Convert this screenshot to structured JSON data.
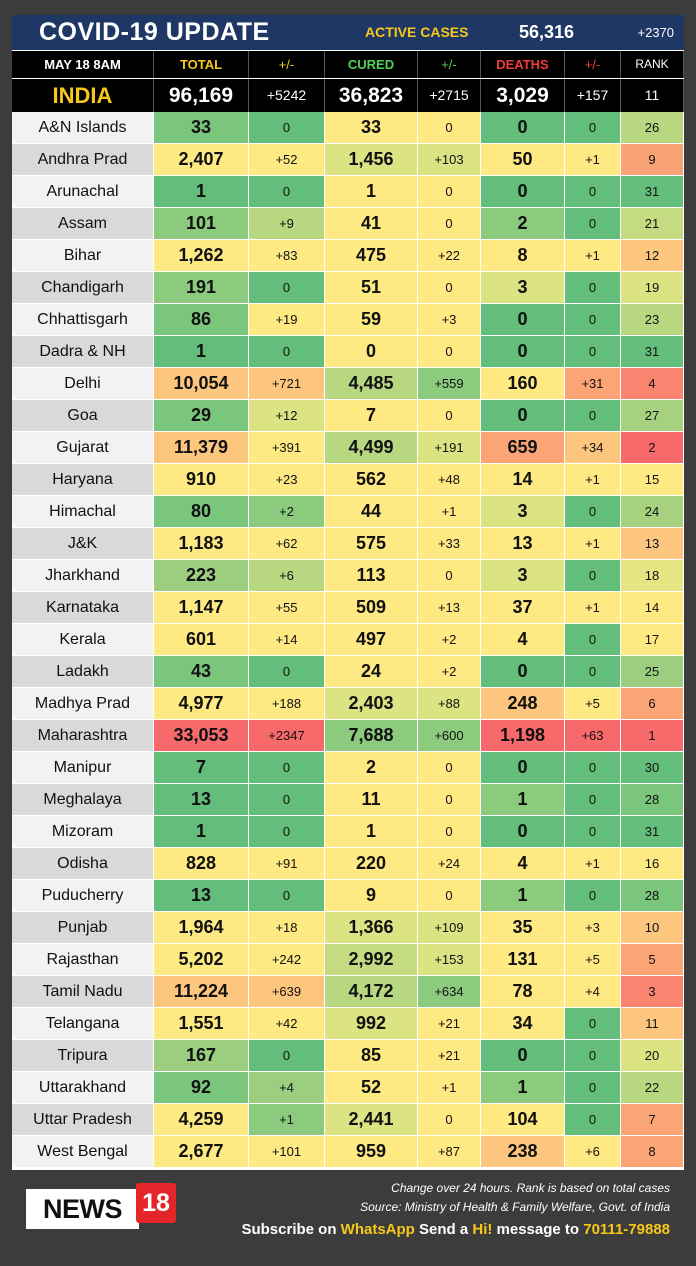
{
  "header": {
    "title": "COVID-19 UPDATE",
    "active_label": "ACTIVE CASES",
    "active_value": "56,316",
    "active_change": "+2370"
  },
  "columns": {
    "date": "MAY 18  8AM",
    "total": "TOTAL",
    "total_change": "+/-",
    "cured": "CURED",
    "cured_change": "+/-",
    "deaths": "DEATHS",
    "deaths_change": "+/-",
    "rank": "RANK"
  },
  "india": {
    "name": "INDIA",
    "total": "96,169",
    "total_change": "+5242",
    "cured": "36,823",
    "cured_change": "+2715",
    "deaths": "3,029",
    "deaths_change": "+157",
    "rank": "11"
  },
  "colors": {
    "green_dark": "#63be7b",
    "green": "#8cca7e",
    "green_light": "#b7d880",
    "yellow_green": "#dbe383",
    "yellow": "#fee983",
    "orange_light": "#fdc67e",
    "orange": "#fba576",
    "red_light": "#f98570",
    "red": "#f8696b"
  },
  "states": [
    {
      "name": "A&N Islands",
      "total": "33",
      "total_change": "0",
      "cured": "33",
      "cured_change": "0",
      "deaths": "0",
      "deaths_change": "0",
      "rank": "26",
      "bg": [
        "#7bc67d",
        "#63be7b",
        "#fee983",
        "#fee983",
        "#63be7b",
        "#63be7b",
        "#b7d880"
      ]
    },
    {
      "name": "Andhra Prad",
      "total": "2,407",
      "total_change": "+52",
      "cured": "1,456",
      "cured_change": "+103",
      "deaths": "50",
      "deaths_change": "+1",
      "rank": "9",
      "bg": [
        "#fee983",
        "#fee983",
        "#dbe383",
        "#dbe383",
        "#fee983",
        "#fee983",
        "#f9a275"
      ]
    },
    {
      "name": "Arunachal",
      "total": "1",
      "total_change": "0",
      "cured": "1",
      "cured_change": "0",
      "deaths": "0",
      "deaths_change": "0",
      "rank": "31",
      "bg": [
        "#63be7b",
        "#63be7b",
        "#fee983",
        "#fee983",
        "#63be7b",
        "#63be7b",
        "#63be7b"
      ]
    },
    {
      "name": "Assam",
      "total": "101",
      "total_change": "+9",
      "cured": "41",
      "cured_change": "0",
      "deaths": "2",
      "deaths_change": "0",
      "rank": "21",
      "bg": [
        "#8cca7e",
        "#b7d880",
        "#fee983",
        "#fee983",
        "#8cca7e",
        "#63be7b",
        "#c5db82"
      ]
    },
    {
      "name": "Bihar",
      "total": "1,262",
      "total_change": "+83",
      "cured": "475",
      "cured_change": "+22",
      "deaths": "8",
      "deaths_change": "+1",
      "rank": "12",
      "bg": [
        "#fee983",
        "#fee983",
        "#fee983",
        "#fee983",
        "#fee983",
        "#fee983",
        "#fdc67e"
      ]
    },
    {
      "name": "Chandigarh",
      "total": "191",
      "total_change": "0",
      "cured": "51",
      "cured_change": "0",
      "deaths": "3",
      "deaths_change": "0",
      "rank": "19",
      "bg": [
        "#8cca7e",
        "#63be7b",
        "#fee983",
        "#fee983",
        "#dbe383",
        "#63be7b",
        "#dbe383"
      ]
    },
    {
      "name": "Chhattisgarh",
      "total": "86",
      "total_change": "+19",
      "cured": "59",
      "cured_change": "+3",
      "deaths": "0",
      "deaths_change": "0",
      "rank": "23",
      "bg": [
        "#7bc67d",
        "#fee983",
        "#fee983",
        "#fee983",
        "#63be7b",
        "#63be7b",
        "#b7d880"
      ]
    },
    {
      "name": "Dadra & NH",
      "total": "1",
      "total_change": "0",
      "cured": "0",
      "cured_change": "0",
      "deaths": "0",
      "deaths_change": "0",
      "rank": "31",
      "bg": [
        "#63be7b",
        "#63be7b",
        "#fee983",
        "#fee983",
        "#63be7b",
        "#63be7b",
        "#63be7b"
      ]
    },
    {
      "name": "Delhi",
      "total": "10,054",
      "total_change": "+721",
      "cured": "4,485",
      "cured_change": "+559",
      "deaths": "160",
      "deaths_change": "+31",
      "rank": "4",
      "bg": [
        "#fdc67e",
        "#fdc67e",
        "#b7d880",
        "#8cca7e",
        "#fee983",
        "#fba576",
        "#f98570"
      ]
    },
    {
      "name": "Goa",
      "total": "29",
      "total_change": "+12",
      "cured": "7",
      "cured_change": "0",
      "deaths": "0",
      "deaths_change": "0",
      "rank": "27",
      "bg": [
        "#7bc67d",
        "#dbe383",
        "#fee983",
        "#fee983",
        "#63be7b",
        "#63be7b",
        "#a6d27f"
      ]
    },
    {
      "name": "Gujarat",
      "total": "11,379",
      "total_change": "+391",
      "cured": "4,499",
      "cured_change": "+191",
      "deaths": "659",
      "deaths_change": "+34",
      "rank": "2",
      "bg": [
        "#fdc67e",
        "#fee983",
        "#b7d880",
        "#dbe383",
        "#fba576",
        "#fdc67e",
        "#f8696b"
      ]
    },
    {
      "name": "Haryana",
      "total": "910",
      "total_change": "+23",
      "cured": "562",
      "cured_change": "+48",
      "deaths": "14",
      "deaths_change": "+1",
      "rank": "15",
      "bg": [
        "#fee983",
        "#fee983",
        "#fee983",
        "#fee983",
        "#fee983",
        "#fee983",
        "#fee983"
      ]
    },
    {
      "name": "Himachal",
      "total": "80",
      "total_change": "+2",
      "cured": "44",
      "cured_change": "+1",
      "deaths": "3",
      "deaths_change": "0",
      "rank": "24",
      "bg": [
        "#7bc67d",
        "#8cca7e",
        "#fee983",
        "#fee983",
        "#dbe383",
        "#63be7b",
        "#a6d27f"
      ]
    },
    {
      "name": "J&K",
      "total": "1,183",
      "total_change": "+62",
      "cured": "575",
      "cured_change": "+33",
      "deaths": "13",
      "deaths_change": "+1",
      "rank": "13",
      "bg": [
        "#fee983",
        "#fee983",
        "#fee983",
        "#fee983",
        "#fee983",
        "#fee983",
        "#fdc67e"
      ]
    },
    {
      "name": "Jharkhand",
      "total": "223",
      "total_change": "+6",
      "cured": "113",
      "cured_change": "0",
      "deaths": "3",
      "deaths_change": "0",
      "rank": "18",
      "bg": [
        "#9bcf7f",
        "#b7d880",
        "#fee983",
        "#fee983",
        "#dbe383",
        "#63be7b",
        "#e6e583"
      ]
    },
    {
      "name": "Karnataka",
      "total": "1,147",
      "total_change": "+55",
      "cured": "509",
      "cured_change": "+13",
      "deaths": "37",
      "deaths_change": "+1",
      "rank": "14",
      "bg": [
        "#fee983",
        "#fee983",
        "#fee983",
        "#fee983",
        "#fee983",
        "#fee983",
        "#fee983"
      ]
    },
    {
      "name": "Kerala",
      "total": "601",
      "total_change": "+14",
      "cured": "497",
      "cured_change": "+2",
      "deaths": "4",
      "deaths_change": "0",
      "rank": "17",
      "bg": [
        "#fee983",
        "#fee983",
        "#fee983",
        "#fee983",
        "#fee983",
        "#63be7b",
        "#fee983"
      ]
    },
    {
      "name": "Ladakh",
      "total": "43",
      "total_change": "0",
      "cured": "24",
      "cured_change": "+2",
      "deaths": "0",
      "deaths_change": "0",
      "rank": "25",
      "bg": [
        "#7bc67d",
        "#63be7b",
        "#fee983",
        "#fee983",
        "#63be7b",
        "#63be7b",
        "#9bcf7f"
      ]
    },
    {
      "name": "Madhya Prad",
      "total": "4,977",
      "total_change": "+188",
      "cured": "2,403",
      "cured_change": "+88",
      "deaths": "248",
      "deaths_change": "+5",
      "rank": "6",
      "bg": [
        "#fee983",
        "#fee983",
        "#dbe383",
        "#dbe383",
        "#fdc67e",
        "#fee983",
        "#fba576"
      ]
    },
    {
      "name": "Maharashtra",
      "total": "33,053",
      "total_change": "+2347",
      "cured": "7,688",
      "cured_change": "+600",
      "deaths": "1,198",
      "deaths_change": "+63",
      "rank": "1",
      "bg": [
        "#f8696b",
        "#f8696b",
        "#8cca7e",
        "#8cca7e",
        "#f8696b",
        "#f8696b",
        "#f8696b"
      ]
    },
    {
      "name": "Manipur",
      "total": "7",
      "total_change": "0",
      "cured": "2",
      "cured_change": "0",
      "deaths": "0",
      "deaths_change": "0",
      "rank": "30",
      "bg": [
        "#63be7b",
        "#63be7b",
        "#fee983",
        "#fee983",
        "#63be7b",
        "#63be7b",
        "#63be7b"
      ]
    },
    {
      "name": "Meghalaya",
      "total": "13",
      "total_change": "0",
      "cured": "11",
      "cured_change": "0",
      "deaths": "1",
      "deaths_change": "0",
      "rank": "28",
      "bg": [
        "#63be7b",
        "#63be7b",
        "#fee983",
        "#fee983",
        "#8cca7e",
        "#63be7b",
        "#7bc67d"
      ]
    },
    {
      "name": "Mizoram",
      "total": "1",
      "total_change": "0",
      "cured": "1",
      "cured_change": "0",
      "deaths": "0",
      "deaths_change": "0",
      "rank": "31",
      "bg": [
        "#63be7b",
        "#63be7b",
        "#fee983",
        "#fee983",
        "#63be7b",
        "#63be7b",
        "#63be7b"
      ]
    },
    {
      "name": "Odisha",
      "total": "828",
      "total_change": "+91",
      "cured": "220",
      "cured_change": "+24",
      "deaths": "4",
      "deaths_change": "+1",
      "rank": "16",
      "bg": [
        "#fee983",
        "#fee983",
        "#fee983",
        "#fee983",
        "#fee983",
        "#fee983",
        "#fee983"
      ]
    },
    {
      "name": "Puducherry",
      "total": "13",
      "total_change": "0",
      "cured": "9",
      "cured_change": "0",
      "deaths": "1",
      "deaths_change": "0",
      "rank": "28",
      "bg": [
        "#63be7b",
        "#63be7b",
        "#fee983",
        "#fee983",
        "#8cca7e",
        "#63be7b",
        "#7bc67d"
      ]
    },
    {
      "name": "Punjab",
      "total": "1,964",
      "total_change": "+18",
      "cured": "1,366",
      "cured_change": "+109",
      "deaths": "35",
      "deaths_change": "+3",
      "rank": "10",
      "bg": [
        "#fee983",
        "#fee983",
        "#dbe383",
        "#dbe383",
        "#fee983",
        "#fee983",
        "#fdc67e"
      ]
    },
    {
      "name": "Rajasthan",
      "total": "5,202",
      "total_change": "+242",
      "cured": "2,992",
      "cured_change": "+153",
      "deaths": "131",
      "deaths_change": "+5",
      "rank": "5",
      "bg": [
        "#fee983",
        "#fee983",
        "#c5db82",
        "#dbe383",
        "#fee983",
        "#fee983",
        "#fba576"
      ]
    },
    {
      "name": "Tamil Nadu",
      "total": "11,224",
      "total_change": "+639",
      "cured": "4,172",
      "cured_change": "+634",
      "deaths": "78",
      "deaths_change": "+4",
      "rank": "3",
      "bg": [
        "#fdc67e",
        "#fdc67e",
        "#b7d880",
        "#8cca7e",
        "#fee983",
        "#fee983",
        "#f98570"
      ]
    },
    {
      "name": "Telangana",
      "total": "1,551",
      "total_change": "+42",
      "cured": "992",
      "cured_change": "+21",
      "deaths": "34",
      "deaths_change": "0",
      "rank": "11",
      "bg": [
        "#fee983",
        "#fee983",
        "#dbe383",
        "#fee983",
        "#fee983",
        "#63be7b",
        "#fdc67e"
      ]
    },
    {
      "name": "Tripura",
      "total": "167",
      "total_change": "0",
      "cured": "85",
      "cured_change": "+21",
      "deaths": "0",
      "deaths_change": "0",
      "rank": "20",
      "bg": [
        "#9bcf7f",
        "#63be7b",
        "#fee983",
        "#fee983",
        "#63be7b",
        "#63be7b",
        "#dbe383"
      ]
    },
    {
      "name": "Uttarakhand",
      "total": "92",
      "total_change": "+4",
      "cured": "52",
      "cured_change": "+1",
      "deaths": "1",
      "deaths_change": "0",
      "rank": "22",
      "bg": [
        "#7bc67d",
        "#9bcf7f",
        "#fee983",
        "#fee983",
        "#8cca7e",
        "#63be7b",
        "#b7d880"
      ]
    },
    {
      "name": "Uttar Pradesh",
      "total": "4,259",
      "total_change": "+1",
      "cured": "2,441",
      "cured_change": "0",
      "deaths": "104",
      "deaths_change": "0",
      "rank": "7",
      "bg": [
        "#fee983",
        "#8cca7e",
        "#dbe383",
        "#fee983",
        "#fee983",
        "#63be7b",
        "#fba576"
      ]
    },
    {
      "name": "West Bengal",
      "total": "2,677",
      "total_change": "+101",
      "cured": "959",
      "cured_change": "+87",
      "deaths": "238",
      "deaths_change": "+6",
      "rank": "8",
      "bg": [
        "#fee983",
        "#fee983",
        "#fee983",
        "#fee983",
        "#fdc67e",
        "#fee983",
        "#fba576"
      ]
    }
  ],
  "footer": {
    "logo_text": "NEWS",
    "logo_number": "18",
    "note1": "Change over 24 hours. Rank is based on total cases",
    "note2": "Source: Ministry of Health & Family Welfare, Govt. of India",
    "sub_prefix": "Subscribe on ",
    "sub_app": "WhatsApp",
    "sub_middle": " Send a ",
    "sub_hi": "Hi!",
    "sub_after": " message to ",
    "sub_number": "70111-79888"
  }
}
